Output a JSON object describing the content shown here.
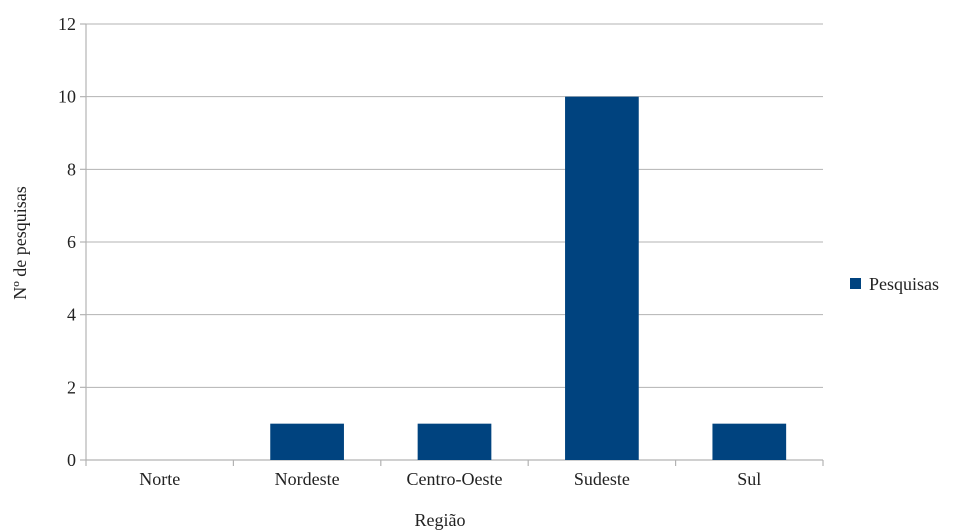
{
  "chart_data": {
    "type": "bar",
    "categories": [
      "Norte",
      "Nordeste",
      "Centro-Oeste",
      "Sudeste",
      "Sul"
    ],
    "series": [
      {
        "name": "Pesquisas",
        "values": [
          0,
          1,
          1,
          10,
          1
        ]
      }
    ],
    "xlabel": "Região",
    "ylabel": "Nº de pesquisas",
    "ylim": [
      0,
      12
    ],
    "yticks": [
      0,
      2,
      4,
      6,
      8,
      10,
      12
    ],
    "grid": true,
    "legend_position": "right",
    "colors": {
      "bar": "#00437f"
    }
  }
}
